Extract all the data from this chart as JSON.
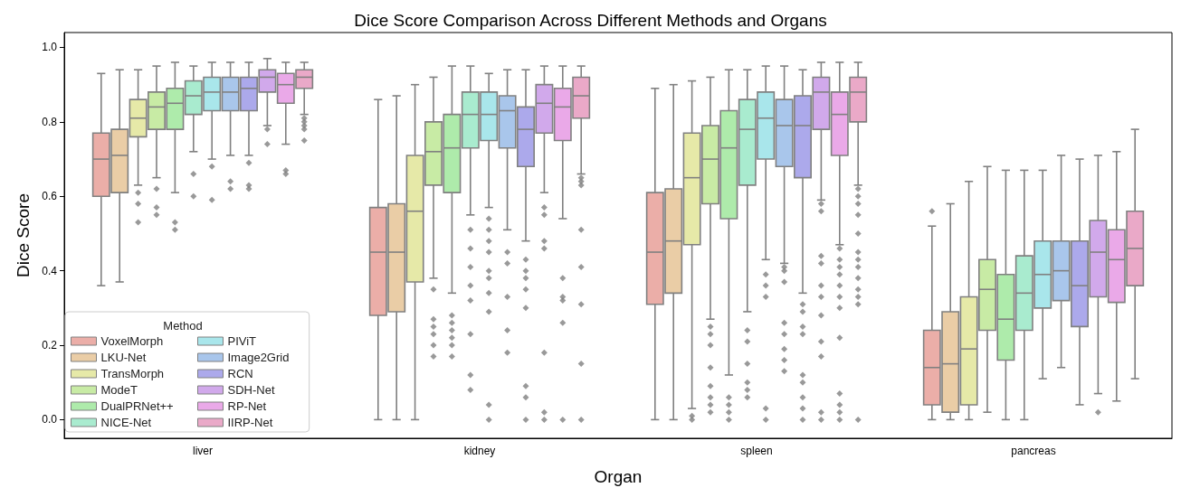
{
  "chart_data": {
    "type": "box",
    "title": "Dice Score Comparison Across Different Methods and Organs",
    "xlabel": "Organ",
    "ylabel": "Dice Score",
    "legend_title": "Method",
    "legend": "bottom left",
    "grid": false,
    "marker": "diamond",
    "categories": [
      "liver",
      "kidney",
      "spleen",
      "pancreas"
    ],
    "ylim": [
      -0.05,
      1.04
    ],
    "yticks": [
      {
        "value": 0,
        "label": "0.0"
      },
      {
        "value": 0.2,
        "label": "0.2"
      },
      {
        "value": 0.4,
        "label": "0.4"
      },
      {
        "value": 0.6,
        "label": "0.6"
      },
      {
        "value": 0.8,
        "label": "0.8"
      },
      {
        "value": 1,
        "label": "1.0"
      }
    ],
    "series": [
      {
        "name": "VoxelMorph",
        "color": "#ebaea8",
        "boxes": [
          {
            "low": 0.36,
            "q1": 0.6,
            "median": 0.7,
            "q3": 0.77,
            "high": 0.93
          },
          {
            "low": 0,
            "q1": 0.28,
            "median": 0.45,
            "q3": 0.57,
            "high": 0.86
          },
          {
            "low": 0,
            "q1": 0.31,
            "median": 0.45,
            "q3": 0.61,
            "high": 0.89
          },
          {
            "low": 0,
            "q1": 0.04,
            "median": 0.14,
            "q3": 0.24,
            "high": 0.52,
            "outliers": [
              0.56
            ]
          }
        ]
      },
      {
        "name": "LKU-Net",
        "color": "#eacda6",
        "boxes": [
          {
            "low": 0.37,
            "q1": 0.61,
            "median": 0.71,
            "q3": 0.78,
            "high": 0.94
          },
          {
            "low": 0,
            "q1": 0.29,
            "median": 0.45,
            "q3": 0.58,
            "high": 0.87
          },
          {
            "low": 0,
            "q1": 0.34,
            "median": 0.48,
            "q3": 0.62,
            "high": 0.9
          },
          {
            "low": 0,
            "q1": 0.02,
            "median": 0.15,
            "q3": 0.29,
            "high": 0.58
          }
        ]
      },
      {
        "name": "TransMorph",
        "color": "#e6e9a8",
        "boxes": [
          {
            "low": 0.63,
            "q1": 0.76,
            "median": 0.81,
            "q3": 0.86,
            "high": 0.94,
            "outliers": [
              0.61,
              0.58,
              0.53
            ]
          },
          {
            "low": 0,
            "q1": 0.37,
            "median": 0.56,
            "q3": 0.71,
            "high": 0.9
          },
          {
            "low": 0.03,
            "q1": 0.47,
            "median": 0.65,
            "q3": 0.77,
            "high": 0.91,
            "outliers": [
              0.01,
              0
            ]
          },
          {
            "low": 0,
            "q1": 0.04,
            "median": 0.19,
            "q3": 0.33,
            "high": 0.64
          }
        ]
      },
      {
        "name": "ModeT",
        "color": "#c8eba5",
        "boxes": [
          {
            "low": 0.65,
            "q1": 0.78,
            "median": 0.84,
            "q3": 0.88,
            "high": 0.95,
            "outliers": [
              0.62,
              0.57,
              0.55
            ]
          },
          {
            "low": 0.38,
            "q1": 0.63,
            "median": 0.72,
            "q3": 0.8,
            "high": 0.92,
            "outliers": [
              0.35,
              0.27,
              0.25,
              0.23,
              0.2,
              0.17
            ]
          },
          {
            "low": 0.27,
            "q1": 0.58,
            "median": 0.7,
            "q3": 0.79,
            "high": 0.92,
            "outliers": [
              0.25,
              0.23,
              0.2,
              0.14,
              0.09,
              0.06,
              0.04,
              0.02
            ]
          },
          {
            "low": 0.02,
            "q1": 0.24,
            "median": 0.35,
            "q3": 0.43,
            "high": 0.68
          }
        ]
      },
      {
        "name": "DualPRNet++",
        "color": "#aeebab",
        "boxes": [
          {
            "low": 0.61,
            "q1": 0.78,
            "median": 0.85,
            "q3": 0.89,
            "high": 0.96,
            "outliers": [
              0.53,
              0.51
            ]
          },
          {
            "low": 0.34,
            "q1": 0.61,
            "median": 0.73,
            "q3": 0.82,
            "high": 0.95,
            "outliers": [
              0.28,
              0.26,
              0.24,
              0.22,
              0.2,
              0.17
            ]
          },
          {
            "low": 0.12,
            "q1": 0.54,
            "median": 0.73,
            "q3": 0.83,
            "high": 0.94,
            "outliers": [
              0.06,
              0.04,
              0.02,
              0
            ]
          },
          {
            "low": 0,
            "q1": 0.16,
            "median": 0.27,
            "q3": 0.39,
            "high": 0.67
          }
        ]
      },
      {
        "name": "NICE-Net",
        "color": "#a9ebcf",
        "boxes": [
          {
            "low": 0.72,
            "q1": 0.82,
            "median": 0.87,
            "q3": 0.91,
            "high": 0.95,
            "outliers": [
              0.66,
              0.6
            ]
          },
          {
            "low": 0.55,
            "q1": 0.73,
            "median": 0.82,
            "q3": 0.88,
            "high": 0.95,
            "outliers": [
              0.51,
              0.46,
              0.41,
              0.36,
              0.32,
              0.23,
              0.12,
              0.08
            ]
          },
          {
            "low": 0.29,
            "q1": 0.63,
            "median": 0.78,
            "q3": 0.86,
            "high": 0.94,
            "outliers": [
              0.24,
              0.21,
              0.15,
              0.1,
              0.08,
              0.06
            ]
          },
          {
            "low": 0,
            "q1": 0.24,
            "median": 0.34,
            "q3": 0.44,
            "high": 0.67
          }
        ]
      },
      {
        "name": "PIViT",
        "color": "#a9e6eb",
        "boxes": [
          {
            "low": 0.7,
            "q1": 0.83,
            "median": 0.88,
            "q3": 0.92,
            "high": 0.96,
            "outliers": [
              0.68,
              0.59
            ]
          },
          {
            "low": 0.57,
            "q1": 0.75,
            "median": 0.82,
            "q3": 0.88,
            "high": 0.93,
            "outliers": [
              0.54,
              0.51,
              0.48,
              0.45,
              0.4,
              0.38,
              0.34,
              0.29,
              0.04,
              0
            ]
          },
          {
            "low": 0.43,
            "q1": 0.7,
            "median": 0.81,
            "q3": 0.88,
            "high": 0.95,
            "outliers": [
              0.39,
              0.36,
              0.33,
              0.03,
              0
            ]
          },
          {
            "low": 0.11,
            "q1": 0.3,
            "median": 0.39,
            "q3": 0.48,
            "high": 0.67
          }
        ]
      },
      {
        "name": "Image2Grid",
        "color": "#a9c6eb",
        "boxes": [
          {
            "low": 0.71,
            "q1": 0.83,
            "median": 0.88,
            "q3": 0.92,
            "high": 0.96,
            "outliers": [
              0.64,
              0.62
            ]
          },
          {
            "low": 0.51,
            "q1": 0.73,
            "median": 0.83,
            "q3": 0.87,
            "high": 0.94,
            "outliers": [
              0.45,
              0.42,
              0.33,
              0.24,
              0.18
            ]
          },
          {
            "low": 0.42,
            "q1": 0.68,
            "median": 0.79,
            "q3": 0.86,
            "high": 0.95,
            "outliers": [
              0.41,
              0.4,
              0.37,
              0.26,
              0.23,
              0.19,
              0.16,
              0.13
            ]
          },
          {
            "low": 0.14,
            "q1": 0.32,
            "median": 0.4,
            "q3": 0.48,
            "high": 0.71
          }
        ]
      },
      {
        "name": "RCN",
        "color": "#aca9eb",
        "boxes": [
          {
            "low": 0.71,
            "q1": 0.83,
            "median": 0.89,
            "q3": 0.92,
            "high": 0.96,
            "outliers": [
              0.69,
              0.63,
              0.62
            ]
          },
          {
            "low": 0.48,
            "q1": 0.68,
            "median": 0.78,
            "q3": 0.84,
            "high": 0.94,
            "outliers": [
              0.43,
              0.4,
              0.38,
              0.35,
              0.3,
              0.09,
              0.06,
              0
            ]
          },
          {
            "low": 0.34,
            "q1": 0.65,
            "median": 0.79,
            "q3": 0.87,
            "high": 0.94,
            "outliers": [
              0.31,
              0.29,
              0.25,
              0.23,
              0.12,
              0.1,
              0.06,
              0.03,
              0
            ]
          },
          {
            "low": 0.04,
            "q1": 0.25,
            "median": 0.36,
            "q3": 0.48,
            "high": 0.7
          }
        ]
      },
      {
        "name": "SDH-Net",
        "color": "#d1a9eb",
        "boxes": [
          {
            "low": 0.79,
            "q1": 0.88,
            "median": 0.92,
            "q3": 0.94,
            "high": 0.97,
            "outliers": [
              0.78,
              0.74
            ]
          },
          {
            "low": 0.61,
            "q1": 0.77,
            "median": 0.85,
            "q3": 0.9,
            "high": 0.95,
            "outliers": [
              0.57,
              0.55,
              0.48,
              0.46,
              0.18,
              0.02,
              0
            ]
          },
          {
            "low": 0.59,
            "q1": 0.78,
            "median": 0.88,
            "q3": 0.92,
            "high": 0.96,
            "outliers": [
              0.58,
              0.56,
              0.44,
              0.42,
              0.36,
              0.33,
              0.28,
              0.21,
              0.17,
              0.02,
              0
            ]
          },
          {
            "low": 0.07,
            "q1": 0.33,
            "median": 0.45,
            "q3": 0.535,
            "high": 0.71,
            "outliers": [
              0.02
            ]
          }
        ]
      },
      {
        "name": "RP-Net",
        "color": "#eaa9e8",
        "boxes": [
          {
            "low": 0.74,
            "q1": 0.85,
            "median": 0.9,
            "q3": 0.93,
            "high": 0.96,
            "outliers": [
              0.67,
              0.66
            ]
          },
          {
            "low": 0.54,
            "q1": 0.75,
            "median": 0.84,
            "q3": 0.89,
            "high": 0.95,
            "outliers": [
              0.38,
              0.33,
              0.32,
              0.26,
              0
            ]
          },
          {
            "low": 0.47,
            "q1": 0.71,
            "median": 0.82,
            "q3": 0.88,
            "high": 0.96,
            "outliers": [
              0.46,
              0.43,
              0.41,
              0.39,
              0.36,
              0.33,
              0.3,
              0.22,
              0.07,
              0.04,
              0.02,
              0
            ]
          },
          {
            "low": 0.05,
            "q1": 0.315,
            "median": 0.43,
            "q3": 0.51,
            "high": 0.72
          }
        ]
      },
      {
        "name": "IIRP-Net",
        "color": "#eaa9c8",
        "boxes": [
          {
            "low": 0.82,
            "q1": 0.89,
            "median": 0.92,
            "q3": 0.94,
            "high": 0.96,
            "outliers": [
              0.81,
              0.8,
              0.79,
              0.78,
              0.75
            ]
          },
          {
            "low": 0.66,
            "q1": 0.81,
            "median": 0.87,
            "q3": 0.92,
            "high": 0.95,
            "outliers": [
              0.65,
              0.64,
              0.63,
              0.51,
              0.41,
              0.31,
              0.15,
              0
            ]
          },
          {
            "low": 0.63,
            "q1": 0.8,
            "median": 0.88,
            "q3": 0.92,
            "high": 0.96,
            "outliers": [
              0.62,
              0.6,
              0.58,
              0.55,
              0.5,
              0.45,
              0.43,
              0.41,
              0.38,
              0.35,
              0.33,
              0.31,
              0
            ]
          },
          {
            "low": 0.11,
            "q1": 0.36,
            "median": 0.46,
            "q3": 0.56,
            "high": 0.78
          }
        ]
      }
    ]
  }
}
